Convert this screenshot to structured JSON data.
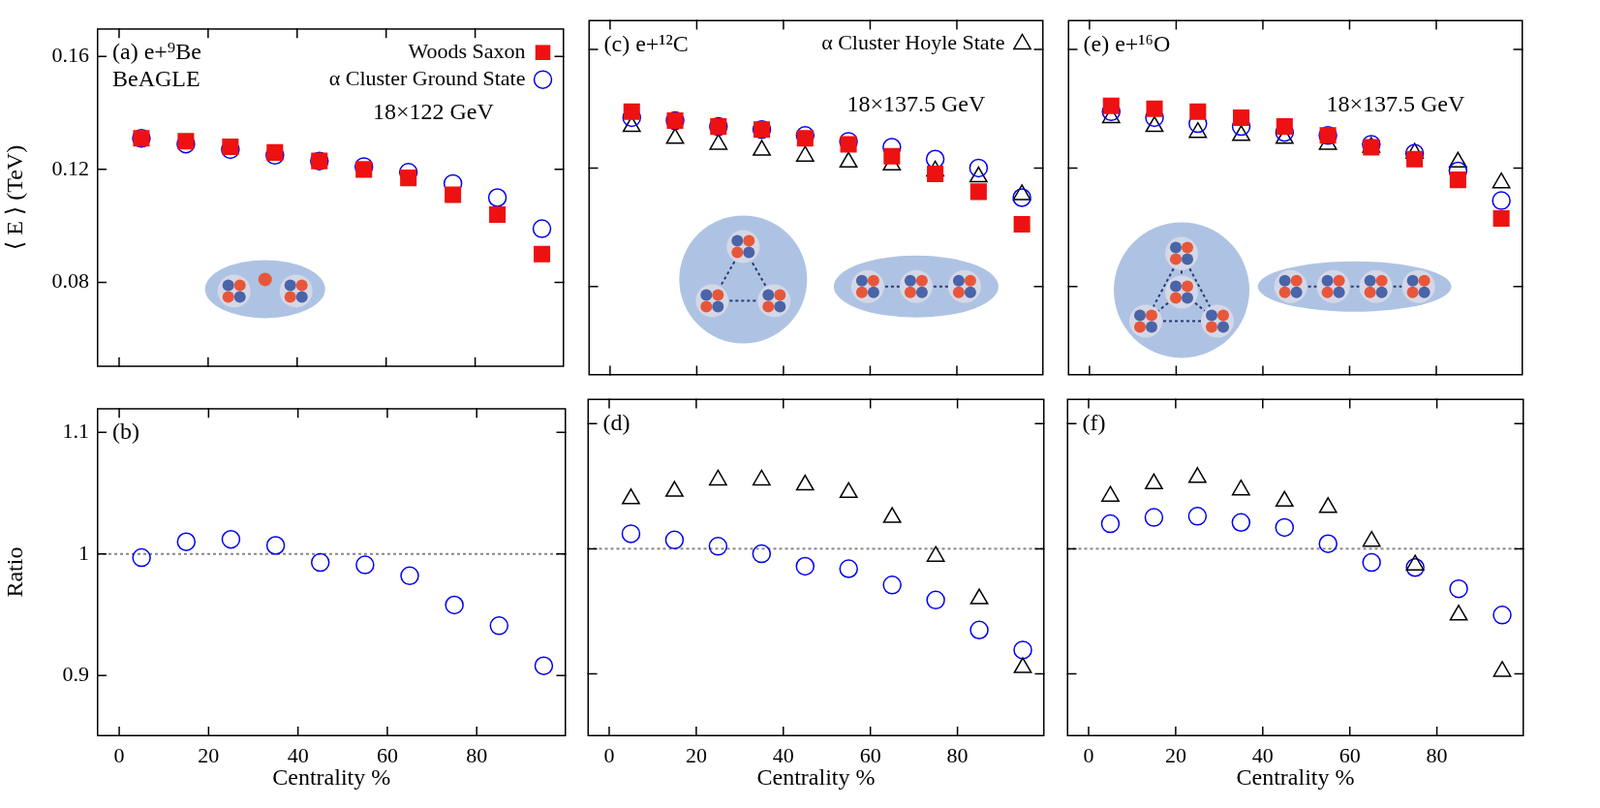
{
  "chart_data": [
    {
      "type": "scatter",
      "title": "(a) e+⁹Be",
      "subtitle": "BeAGLE",
      "annotations": [
        "18×122 GeV"
      ],
      "y_label": "⟨ E ⟩ (TeV)",
      "tick_labels": "y",
      "grid": false,
      "legend": "upper right",
      "x": [
        5,
        15,
        25,
        35,
        45,
        55,
        65,
        75,
        85,
        95
      ],
      "xlim": [
        -5,
        100
      ],
      "xticks": [
        0,
        20,
        40,
        60,
        80
      ],
      "ylim": [
        0.05,
        0.17
      ],
      "yticks": [
        0.08,
        0.12,
        0.16
      ],
      "series": [
        {
          "name": "Woods Saxon",
          "color": "#ee1111",
          "marker": "square",
          "values": [
            0.131,
            0.13,
            0.128,
            0.126,
            0.123,
            0.12,
            0.117,
            0.111,
            0.104,
            0.09
          ]
        },
        {
          "name": "α Cluster Ground State",
          "color": "#0000ee",
          "marker": "open_circle",
          "values": [
            0.131,
            0.129,
            0.127,
            0.125,
            0.123,
            0.121,
            0.119,
            0.115,
            0.11,
            0.099
          ]
        }
      ]
    },
    {
      "type": "scatter",
      "title": "(b)",
      "y_label": "Ratio",
      "x_label": "Centrality %",
      "tick_labels": true,
      "grid": false,
      "x": [
        5,
        15,
        25,
        35,
        45,
        55,
        65,
        75,
        85,
        95
      ],
      "xlim": [
        -5,
        100
      ],
      "xticks": [
        0,
        20,
        40,
        60,
        80
      ],
      "ylim": [
        0.85,
        1.12
      ],
      "yticks": [
        0.9,
        1,
        1.1
      ],
      "reference_line": 1,
      "series": [
        {
          "name": "α Cluster Ground State",
          "color": "#0000ee",
          "marker": "open_circle",
          "values": [
            0.997,
            1.01,
            1.012,
            1.007,
            0.993,
            0.991,
            0.982,
            0.958,
            0.941,
            0.908
          ]
        }
      ]
    },
    {
      "type": "scatter",
      "title": "(c) e+¹²C",
      "annotations": [
        "18×137.5 GeV"
      ],
      "tick_labels": false,
      "grid": false,
      "legend": "upper right",
      "x": [
        5,
        15,
        25,
        35,
        45,
        55,
        65,
        75,
        85,
        95
      ],
      "xlim": [
        -5,
        100
      ],
      "xticks": [
        0,
        20,
        40,
        60,
        80
      ],
      "ylim": [
        0.05,
        0.17
      ],
      "yticks": [
        0.08,
        0.12,
        0.16
      ],
      "series": [
        {
          "name": "Woods Saxon",
          "color": "#ee1111",
          "marker": "square",
          "values": [
            0.139,
            0.136,
            0.134,
            0.133,
            0.13,
            0.128,
            0.124,
            0.118,
            0.112,
            0.101
          ]
        },
        {
          "name": "α Cluster Ground State",
          "color": "#0000ee",
          "marker": "open_circle",
          "values": [
            0.137,
            0.136,
            0.134,
            0.133,
            0.131,
            0.129,
            0.127,
            0.123,
            0.12,
            0.11
          ]
        },
        {
          "name": "α Cluster Hoyle State",
          "color": "#000000",
          "marker": "open_triangle",
          "values": [
            0.134,
            0.13,
            0.128,
            0.126,
            0.124,
            0.122,
            0.121,
            0.119,
            0.117,
            0.111
          ]
        }
      ]
    },
    {
      "type": "scatter",
      "title": "(d)",
      "x_label": "Centrality %",
      "tick_labels": "x",
      "grid": false,
      "x": [
        5,
        15,
        25,
        35,
        45,
        55,
        65,
        75,
        85,
        95
      ],
      "xlim": [
        -5,
        100
      ],
      "xticks": [
        0,
        20,
        40,
        60,
        80
      ],
      "ylim": [
        0.85,
        1.12
      ],
      "yticks": [
        0.9,
        1,
        1.1
      ],
      "reference_line": 1,
      "series": [
        {
          "name": "α Cluster Hoyle State",
          "color": "#000000",
          "marker": "open_triangle",
          "values": [
            1.04,
            1.046,
            1.055,
            1.055,
            1.051,
            1.045,
            1.025,
            0.994,
            0.96,
            0.905
          ]
        },
        {
          "name": "α Cluster Ground State",
          "color": "#0000ee",
          "marker": "open_circle",
          "values": [
            1.012,
            1.007,
            1.002,
            0.996,
            0.986,
            0.984,
            0.971,
            0.959,
            0.935,
            0.919
          ]
        }
      ]
    },
    {
      "type": "scatter",
      "title": "(e) e+¹⁶O",
      "annotations": [
        "18×137.5 GeV"
      ],
      "tick_labels": false,
      "grid": false,
      "x": [
        5,
        15,
        25,
        35,
        45,
        55,
        65,
        75,
        85,
        95
      ],
      "xlim": [
        -5,
        100
      ],
      "xticks": [
        0,
        20,
        40,
        60,
        80
      ],
      "ylim": [
        0.05,
        0.17
      ],
      "yticks": [
        0.08,
        0.12,
        0.16
      ],
      "series": [
        {
          "name": "Woods Saxon",
          "color": "#ee1111",
          "marker": "square",
          "values": [
            0.141,
            0.14,
            0.139,
            0.137,
            0.134,
            0.131,
            0.127,
            0.123,
            0.116,
            0.103
          ]
        },
        {
          "name": "α Cluster Ground State",
          "color": "#0000ee",
          "marker": "open_circle",
          "values": [
            0.139,
            0.137,
            0.135,
            0.134,
            0.132,
            0.131,
            0.128,
            0.125,
            0.119,
            0.109
          ]
        },
        {
          "name": "α Cluster Hoyle State",
          "color": "#000000",
          "marker": "open_triangle",
          "values": [
            0.137,
            0.134,
            0.132,
            0.131,
            0.13,
            0.128,
            0.127,
            0.125,
            0.122,
            0.115
          ]
        }
      ]
    },
    {
      "type": "scatter",
      "title": "(f)",
      "x_label": "Centrality %",
      "tick_labels": "x",
      "grid": false,
      "x": [
        5,
        15,
        25,
        35,
        45,
        55,
        65,
        75,
        85,
        95
      ],
      "xlim": [
        -5,
        100
      ],
      "xticks": [
        0,
        20,
        40,
        60,
        80
      ],
      "ylim": [
        0.85,
        1.12
      ],
      "yticks": [
        0.9,
        1,
        1.1
      ],
      "reference_line": 1,
      "series": [
        {
          "name": "α Cluster Hoyle State",
          "color": "#000000",
          "marker": "open_triangle",
          "values": [
            1.042,
            1.052,
            1.057,
            1.047,
            1.038,
            1.033,
            1.006,
            0.987,
            0.947,
            0.902
          ]
        },
        {
          "name": "α Cluster Ground State",
          "color": "#0000ee",
          "marker": "open_circle",
          "values": [
            1.02,
            1.025,
            1.026,
            1.021,
            1.017,
            1.004,
            0.989,
            0.985,
            0.968,
            0.947
          ]
        }
      ]
    }
  ]
}
